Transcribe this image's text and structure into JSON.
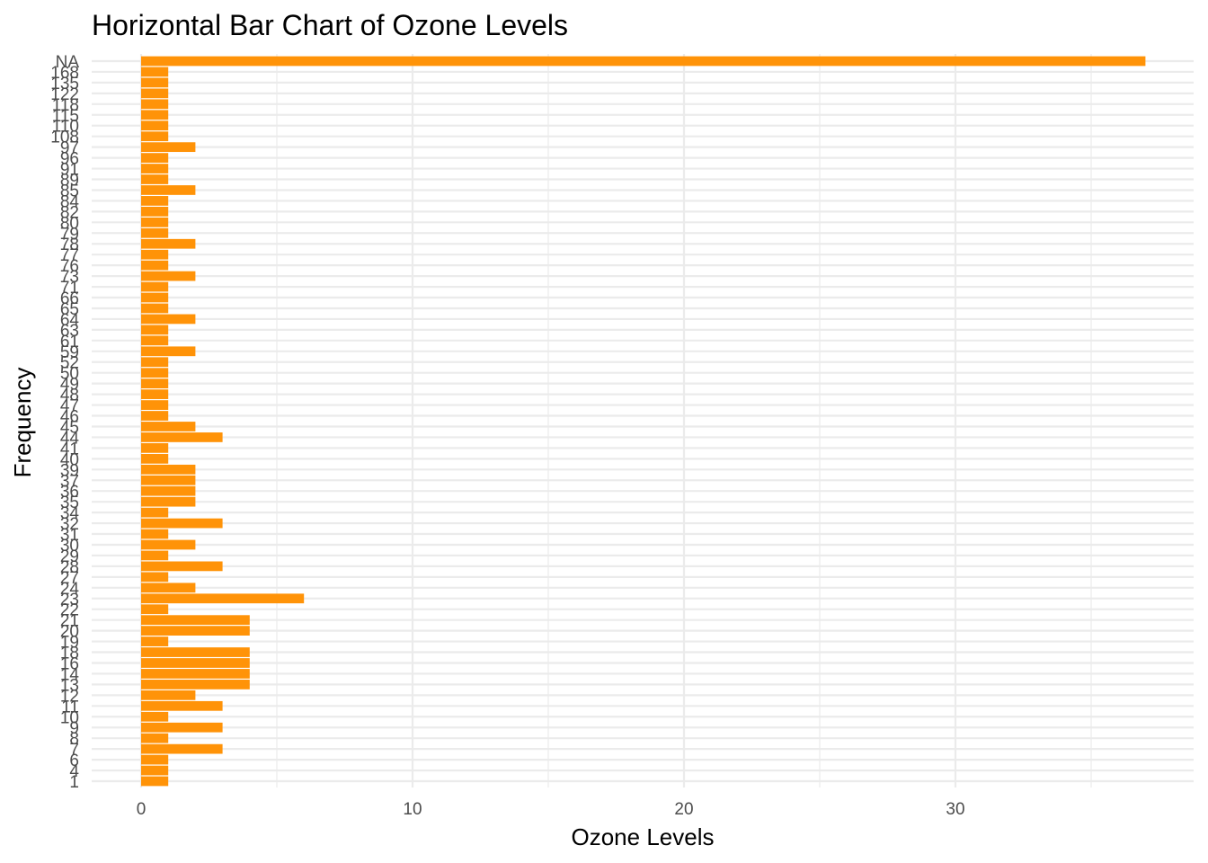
{
  "chart_data": {
    "type": "bar",
    "orientation": "horizontal",
    "title": "Horizontal Bar Chart of Ozone Levels",
    "xlabel": "Ozone Levels",
    "ylabel": "Frequency",
    "xlim": [
      0,
      37
    ],
    "x_ticks": [
      0,
      10,
      20,
      30
    ],
    "grid": true,
    "legend": "none",
    "bar_color": "#FF9308",
    "categories": [
      "1",
      "4",
      "6",
      "7",
      "8",
      "9",
      "10",
      "11",
      "12",
      "13",
      "14",
      "16",
      "18",
      "19",
      "20",
      "21",
      "22",
      "23",
      "24",
      "27",
      "28",
      "29",
      "30",
      "31",
      "32",
      "34",
      "35",
      "36",
      "37",
      "39",
      "40",
      "41",
      "44",
      "45",
      "46",
      "47",
      "48",
      "49",
      "50",
      "52",
      "59",
      "61",
      "63",
      "64",
      "65",
      "66",
      "71",
      "73",
      "76",
      "77",
      "78",
      "79",
      "80",
      "82",
      "84",
      "85",
      "89",
      "91",
      "96",
      "97",
      "108",
      "110",
      "115",
      "118",
      "122",
      "135",
      "168",
      "NA"
    ],
    "values": [
      1,
      1,
      1,
      3,
      1,
      3,
      1,
      3,
      2,
      4,
      4,
      4,
      4,
      1,
      4,
      4,
      1,
      6,
      2,
      1,
      3,
      1,
      2,
      1,
      3,
      1,
      2,
      2,
      2,
      2,
      1,
      1,
      3,
      2,
      1,
      1,
      1,
      1,
      1,
      1,
      2,
      1,
      1,
      2,
      1,
      1,
      1,
      2,
      1,
      1,
      2,
      1,
      1,
      1,
      1,
      2,
      1,
      1,
      1,
      2,
      1,
      1,
      1,
      1,
      1,
      1,
      1,
      37
    ]
  }
}
